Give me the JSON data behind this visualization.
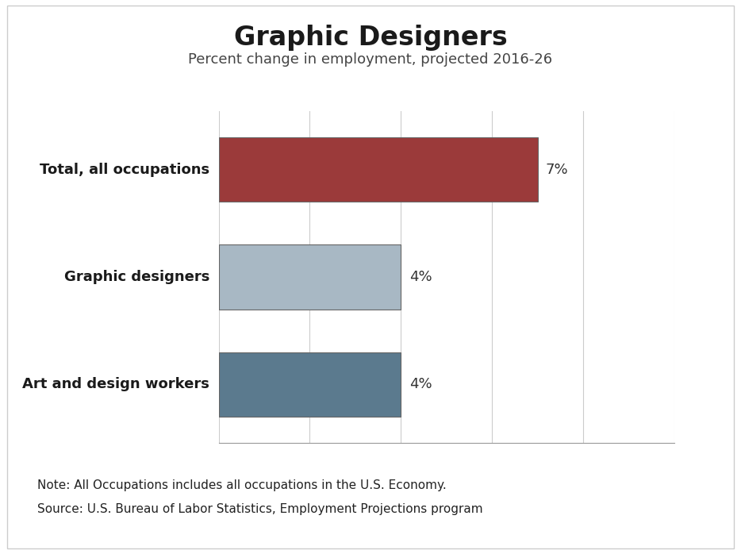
{
  "title": "Graphic Designers",
  "subtitle": "Percent change in employment, projected 2016-26",
  "categories": [
    "Art and design workers",
    "Graphic designers",
    "Total, all occupations"
  ],
  "values": [
    4,
    4,
    7
  ],
  "bar_colors": [
    "#5b7a8e",
    "#a8b8c4",
    "#9b3a3a"
  ],
  "value_labels": [
    "4%",
    "4%",
    "7%"
  ],
  "xlim": [
    0,
    10
  ],
  "xticks": [
    0,
    2,
    4,
    6,
    8,
    10
  ],
  "note_line1": "Note: All Occupations includes all occupations in the U.S. Economy.",
  "note_line2": "Source: U.S. Bureau of Labor Statistics, Employment Projections program",
  "background_color": "#ffffff",
  "plot_bg_color": "#ffffff",
  "title_fontsize": 24,
  "subtitle_fontsize": 13,
  "label_fontsize": 13,
  "value_fontsize": 13,
  "note_fontsize": 11,
  "bar_height": 0.6,
  "bar_edge_color": "#666666",
  "bar_edge_width": 0.8
}
